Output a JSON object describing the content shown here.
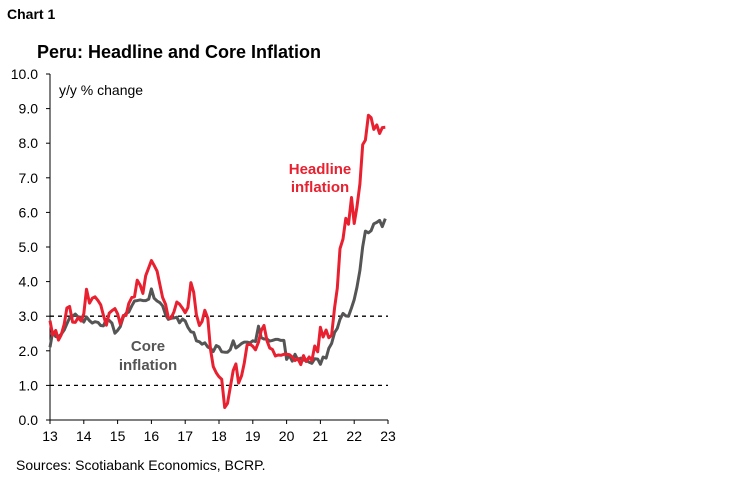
{
  "header": {
    "chart_label": "Chart 1"
  },
  "footer": {
    "source": "Sources: Scotiabank Economics, BCRP."
  },
  "chart_data": {
    "type": "line",
    "title": "Peru: Headline and Core Inflation",
    "ylabel": "y/y % change",
    "xlabel": "",
    "ylim": [
      0,
      10
    ],
    "yticks": [
      "0.0",
      "1.0",
      "2.0",
      "3.0",
      "4.0",
      "5.0",
      "6.0",
      "7.0",
      "8.0",
      "9.0",
      "10.0"
    ],
    "xlim": [
      2013,
      2023
    ],
    "xticks": [
      "13",
      "14",
      "15",
      "16",
      "17",
      "18",
      "19",
      "20",
      "21",
      "22",
      "23"
    ],
    "grid": false,
    "reference_lines": [
      1.0,
      3.0
    ],
    "colors": {
      "headline": "#e8202f",
      "core": "#555555"
    },
    "series": [
      {
        "name": "Headline inflation",
        "color": "#e8202f",
        "x": [
          2013.0,
          2013.08,
          2013.17,
          2013.25,
          2013.33,
          2013.42,
          2013.5,
          2013.58,
          2013.67,
          2013.75,
          2013.83,
          2013.92,
          2014.0,
          2014.08,
          2014.17,
          2014.25,
          2014.33,
          2014.42,
          2014.5,
          2014.58,
          2014.67,
          2014.75,
          2014.83,
          2014.92,
          2015.0,
          2015.08,
          2015.17,
          2015.25,
          2015.33,
          2015.42,
          2015.5,
          2015.58,
          2015.67,
          2015.75,
          2015.83,
          2015.92,
          2016.0,
          2016.08,
          2016.17,
          2016.25,
          2016.33,
          2016.42,
          2016.5,
          2016.58,
          2016.67,
          2016.75,
          2016.83,
          2016.92,
          2017.0,
          2017.08,
          2017.17,
          2017.25,
          2017.33,
          2017.42,
          2017.5,
          2017.58,
          2017.67,
          2017.75,
          2017.83,
          2017.92,
          2018.0,
          2018.08,
          2018.17,
          2018.25,
          2018.33,
          2018.42,
          2018.5,
          2018.58,
          2018.67,
          2018.75,
          2018.83,
          2018.92,
          2019.0,
          2019.08,
          2019.17,
          2019.25,
          2019.33,
          2019.42,
          2019.5,
          2019.58,
          2019.67,
          2019.75,
          2019.83,
          2019.92,
          2020.0,
          2020.08,
          2020.17,
          2020.25,
          2020.33,
          2020.42,
          2020.5,
          2020.58,
          2020.67,
          2020.75,
          2020.83,
          2020.92,
          2021.0,
          2021.08,
          2021.17,
          2021.25,
          2021.33,
          2021.42,
          2021.5,
          2021.58,
          2021.67,
          2021.75,
          2021.83,
          2021.92,
          2022.0,
          2022.08,
          2022.17,
          2022.25,
          2022.33,
          2022.42,
          2022.5,
          2022.58,
          2022.67,
          2022.75,
          2022.83,
          2022.92
        ],
        "values": [
          2.87,
          2.45,
          2.59,
          2.31,
          2.46,
          2.77,
          3.24,
          3.28,
          2.83,
          2.82,
          2.96,
          2.86,
          3.07,
          3.78,
          3.38,
          3.52,
          3.56,
          3.45,
          3.33,
          3.03,
          2.74,
          3.09,
          3.16,
          3.22,
          3.07,
          2.77,
          3.02,
          3.02,
          3.37,
          3.54,
          3.56,
          4.04,
          3.9,
          3.66,
          4.17,
          4.4,
          4.61,
          4.47,
          4.3,
          3.91,
          3.54,
          3.34,
          2.96,
          2.94,
          3.13,
          3.41,
          3.35,
          3.23,
          3.1,
          3.25,
          3.97,
          3.69,
          3.04,
          2.73,
          2.85,
          3.17,
          2.94,
          2.04,
          1.54,
          1.36,
          1.25,
          1.18,
          0.36,
          0.48,
          0.93,
          1.43,
          1.62,
          1.07,
          1.28,
          1.65,
          2.17,
          2.19,
          2.13,
          2.03,
          2.25,
          2.59,
          2.73,
          2.29,
          2.08,
          2.04,
          1.85,
          1.88,
          1.87,
          1.9,
          1.9,
          1.89,
          1.82,
          1.72,
          1.78,
          1.6,
          1.86,
          1.69,
          1.82,
          1.72,
          2.14,
          1.97,
          2.68,
          2.4,
          2.6,
          2.38,
          2.45,
          3.25,
          3.81,
          4.95,
          5.23,
          5.83,
          5.66,
          6.43,
          5.68,
          6.15,
          6.82,
          7.96,
          8.09,
          8.81,
          8.74,
          8.4,
          8.53,
          8.28,
          8.45,
          8.46
        ]
      },
      {
        "name": "Core inflation",
        "color": "#555555",
        "x": [
          2013.0,
          2013.08,
          2013.17,
          2013.25,
          2013.33,
          2013.42,
          2013.5,
          2013.58,
          2013.67,
          2013.75,
          2013.83,
          2013.92,
          2014.0,
          2014.08,
          2014.17,
          2014.25,
          2014.33,
          2014.42,
          2014.5,
          2014.58,
          2014.67,
          2014.75,
          2014.83,
          2014.92,
          2015.0,
          2015.08,
          2015.17,
          2015.25,
          2015.33,
          2015.42,
          2015.5,
          2015.58,
          2015.67,
          2015.75,
          2015.83,
          2015.92,
          2016.0,
          2016.08,
          2016.17,
          2016.25,
          2016.33,
          2016.42,
          2016.5,
          2016.58,
          2016.67,
          2016.75,
          2016.83,
          2016.92,
          2017.0,
          2017.08,
          2017.17,
          2017.25,
          2017.33,
          2017.42,
          2017.5,
          2017.58,
          2017.67,
          2017.75,
          2017.83,
          2017.92,
          2018.0,
          2018.08,
          2018.17,
          2018.25,
          2018.33,
          2018.42,
          2018.5,
          2018.58,
          2018.67,
          2018.75,
          2018.83,
          2018.92,
          2019.0,
          2019.08,
          2019.17,
          2019.25,
          2019.33,
          2019.42,
          2019.5,
          2019.58,
          2019.67,
          2019.75,
          2019.83,
          2019.92,
          2020.0,
          2020.08,
          2020.17,
          2020.25,
          2020.33,
          2020.42,
          2020.5,
          2020.58,
          2020.67,
          2020.75,
          2020.83,
          2020.92,
          2021.0,
          2021.08,
          2021.17,
          2021.25,
          2021.33,
          2021.42,
          2021.5,
          2021.58,
          2021.67,
          2021.75,
          2021.83,
          2021.92,
          2022.0,
          2022.08,
          2022.17,
          2022.25,
          2022.33,
          2022.42,
          2022.5,
          2022.58,
          2022.67,
          2022.75,
          2022.83,
          2022.92
        ],
        "values": [
          2.1,
          2.55,
          2.41,
          2.41,
          2.48,
          2.6,
          2.78,
          2.95,
          3.0,
          3.06,
          2.98,
          2.97,
          2.83,
          2.98,
          2.87,
          2.8,
          2.84,
          2.82,
          2.73,
          2.72,
          2.91,
          2.88,
          2.8,
          2.51,
          2.59,
          2.7,
          2.98,
          3.08,
          3.12,
          3.3,
          3.44,
          3.45,
          3.47,
          3.45,
          3.45,
          3.49,
          3.79,
          3.52,
          3.44,
          3.39,
          3.3,
          3.04,
          2.91,
          2.94,
          2.95,
          2.97,
          2.81,
          2.92,
          2.86,
          2.68,
          2.55,
          2.53,
          2.29,
          2.26,
          2.19,
          2.23,
          2.11,
          2.07,
          1.98,
          2.15,
          2.11,
          1.97,
          1.96,
          1.96,
          2.03,
          2.29,
          2.08,
          2.14,
          2.21,
          2.25,
          2.25,
          2.23,
          2.29,
          2.27,
          2.71,
          2.38,
          2.34,
          2.34,
          2.28,
          2.3,
          2.33,
          2.33,
          2.3,
          2.3,
          1.75,
          1.87,
          1.7,
          1.9,
          1.74,
          1.79,
          1.73,
          1.72,
          1.67,
          1.64,
          1.77,
          1.76,
          1.61,
          1.82,
          1.79,
          2.07,
          2.21,
          2.53,
          2.65,
          2.91,
          3.08,
          3.01,
          3.0,
          3.24,
          3.48,
          3.83,
          4.32,
          5.01,
          5.46,
          5.41,
          5.47,
          5.67,
          5.71,
          5.77,
          5.59,
          5.82
        ]
      }
    ],
    "annotations": [
      {
        "lines": [
          "Headline",
          "inflation"
        ],
        "color": "#e8202f",
        "x": 2020.9,
        "y": 7.2
      },
      {
        "lines": [
          "Core",
          "inflation"
        ],
        "color": "#555555",
        "x": 17.5,
        "y": 1.7
      }
    ]
  }
}
